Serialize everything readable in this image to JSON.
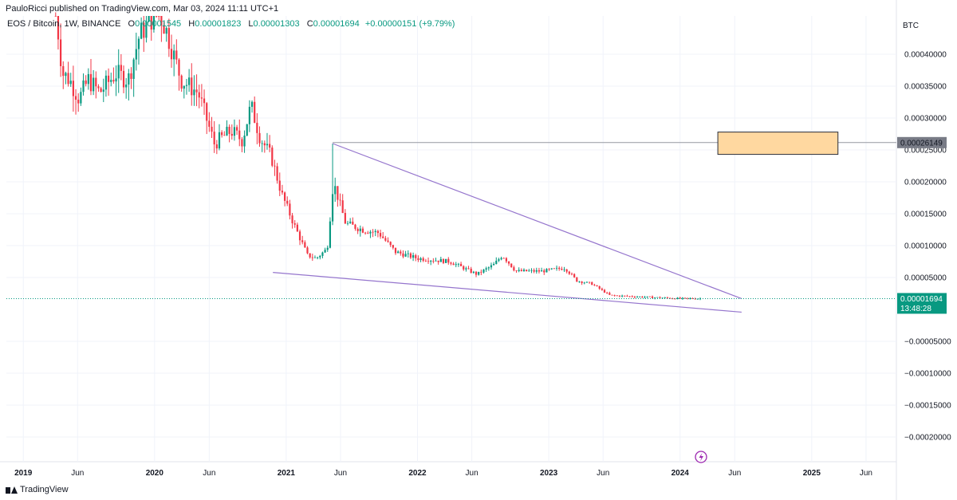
{
  "header": {
    "published_line": "PauloRicci published on TradingView.com, Mar 03, 2024 11:11 UTC+1"
  },
  "legend": {
    "symbol": "EOS / Bitcoin, 1W, BINANCE",
    "o_label": "O",
    "o_value": "0.00001545",
    "h_label": "H",
    "h_value": "0.00001823",
    "l_label": "L",
    "l_value": "0.00001303",
    "c_label": "C",
    "c_value": "0.00001694",
    "change": "+0.00000151 (+9.79%)"
  },
  "footer": {
    "brand": "TradingView"
  },
  "colors": {
    "up": "#089981",
    "down": "#f23645",
    "trendline": "#9575cd",
    "box_fill": "#ffd8a0",
    "box_stroke": "#2a2e39"
  },
  "chart_data": {
    "type": "candlestick",
    "currency_label": "BTC",
    "ylim": [
      -0.00023,
      0.00046
    ],
    "y_ticks": [
      {
        "value": 0.0004,
        "label": "0.00040000"
      },
      {
        "value": 0.00035,
        "label": "0.00035000"
      },
      {
        "value": 0.0003,
        "label": "0.00030000"
      },
      {
        "value": 0.00025,
        "label": "0.00025000"
      },
      {
        "value": 0.0002,
        "label": "0.00020000"
      },
      {
        "value": 0.00015,
        "label": "0.00015000"
      },
      {
        "value": 0.0001,
        "label": "0.00010000"
      },
      {
        "value": 5e-05,
        "label": "0.00005000"
      },
      {
        "value": -5e-05,
        "label": "−0.00005000"
      },
      {
        "value": -0.0001,
        "label": "−0.00010000"
      },
      {
        "value": -0.00015,
        "label": "−0.00015000"
      },
      {
        "value": -0.0002,
        "label": "−0.00020000"
      }
    ],
    "x_range": [
      "2018-11-15",
      "2025-08-20"
    ],
    "x_ticks": [
      {
        "date": "2019-01-01",
        "label": "2019",
        "year": true
      },
      {
        "date": "2019-06-01",
        "label": "Jun",
        "year": false
      },
      {
        "date": "2020-01-01",
        "label": "2020",
        "year": true
      },
      {
        "date": "2020-06-01",
        "label": "Jun",
        "year": false
      },
      {
        "date": "2021-01-01",
        "label": "2021",
        "year": true
      },
      {
        "date": "2021-06-01",
        "label": "Jun",
        "year": false
      },
      {
        "date": "2022-01-01",
        "label": "2022",
        "year": true
      },
      {
        "date": "2022-06-01",
        "label": "Jun",
        "year": false
      },
      {
        "date": "2023-01-01",
        "label": "2023",
        "year": true
      },
      {
        "date": "2023-06-01",
        "label": "Jun",
        "year": false
      },
      {
        "date": "2024-01-01",
        "label": "2024",
        "year": true
      },
      {
        "date": "2024-06-01",
        "label": "Jun",
        "year": false
      },
      {
        "date": "2025-01-01",
        "label": "2025",
        "year": true
      },
      {
        "date": "2025-06-01",
        "label": "Jun",
        "year": false
      }
    ],
    "price_path": [
      [
        "2019-04-01",
        0.00047
      ],
      [
        "2019-04-20",
        0.00037
      ],
      [
        "2019-05-10",
        0.00036
      ],
      [
        "2019-06-05",
        0.00033
      ],
      [
        "2019-07-01",
        0.00036
      ],
      [
        "2019-08-01",
        0.00034
      ],
      [
        "2019-09-15",
        0.00037
      ],
      [
        "2019-10-20",
        0.00036
      ],
      [
        "2019-11-20",
        0.00043
      ],
      [
        "2020-01-10",
        0.00047
      ],
      [
        "2020-02-01",
        0.00044
      ],
      [
        "2020-03-15",
        0.00036
      ],
      [
        "2020-05-01",
        0.00034
      ],
      [
        "2020-06-15",
        0.00026
      ],
      [
        "2020-08-01",
        0.00028
      ],
      [
        "2020-09-01",
        0.000265
      ],
      [
        "2020-09-25",
        0.00032
      ],
      [
        "2020-10-20",
        0.00027
      ],
      [
        "2020-11-20",
        0.00024
      ],
      [
        "2020-12-20",
        0.00018
      ],
      [
        "2021-01-25",
        0.00013
      ],
      [
        "2021-03-01",
        8.5e-05
      ],
      [
        "2021-03-25",
        8e-05
      ],
      [
        "2021-04-25",
        9.5e-05
      ],
      [
        "2021-05-12",
        0.0002
      ],
      [
        "2021-06-15",
        0.000135
      ],
      [
        "2021-08-01",
        0.000125
      ],
      [
        "2021-09-15",
        0.00012
      ],
      [
        "2021-11-01",
        9e-05
      ],
      [
        "2022-01-01",
        8e-05
      ],
      [
        "2022-04-01",
        7.5e-05
      ],
      [
        "2022-06-15",
        5.5e-05
      ],
      [
        "2022-08-01",
        7e-05
      ],
      [
        "2022-08-25",
        8.5e-05
      ],
      [
        "2022-10-01",
        6e-05
      ],
      [
        "2022-12-15",
        6e-05
      ],
      [
        "2023-02-15",
        6.5e-05
      ],
      [
        "2023-03-20",
        4.5e-05
      ],
      [
        "2023-05-01",
        4e-05
      ],
      [
        "2023-06-20",
        2.2e-05
      ],
      [
        "2023-09-01",
        2e-05
      ],
      [
        "2024-01-01",
        1.7e-05
      ],
      [
        "2024-03-03",
        1.694e-05
      ]
    ],
    "marked_high": {
      "date": "2021-05-10",
      "value": 0.00026
    },
    "trendlines": [
      {
        "from": [
          "2021-05-10",
          0.00026
        ],
        "to": [
          "2024-06-20",
          1.694e-05
        ]
      },
      {
        "from": [
          "2020-11-25",
          5.8e-05
        ],
        "to": [
          "2024-06-20",
          -4.3e-06
        ]
      }
    ],
    "target_box": {
      "x0": "2024-04-15",
      "x1": "2025-03-15",
      "y0": 0.000243,
      "y1": 0.000278
    },
    "level_line": {
      "value": 0.00026149,
      "label": "0.00026149"
    },
    "last_price": {
      "value": 1.694e-05,
      "label": "0.00001694",
      "countdown": "13:48:28"
    }
  }
}
